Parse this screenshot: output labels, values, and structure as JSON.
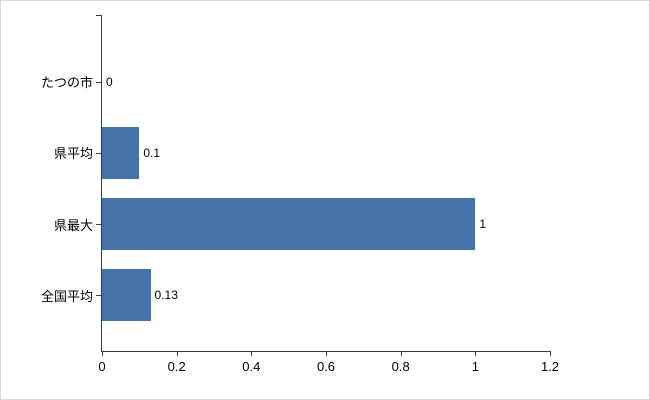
{
  "chart_data": {
    "type": "bar",
    "orientation": "horizontal",
    "title": "",
    "xlabel": "",
    "ylabel": "",
    "categories": [
      "たつの市",
      "県平均",
      "県最大",
      "全国平均"
    ],
    "values": [
      0,
      0.1,
      1,
      0.13
    ],
    "value_labels": [
      "0",
      "0.1",
      "1",
      "0.13"
    ],
    "xlim": [
      0,
      1.2
    ],
    "x_ticks": [
      0,
      0.2,
      0.4,
      0.6,
      0.8,
      1,
      1.2
    ],
    "x_tick_labels": [
      "0",
      "0.2",
      "0.4",
      "0.6",
      "0.8",
      "1",
      "1.2"
    ],
    "bar_color": "#4572a8",
    "axis_color": "#3a3a3a",
    "grid": false,
    "legend": false
  }
}
